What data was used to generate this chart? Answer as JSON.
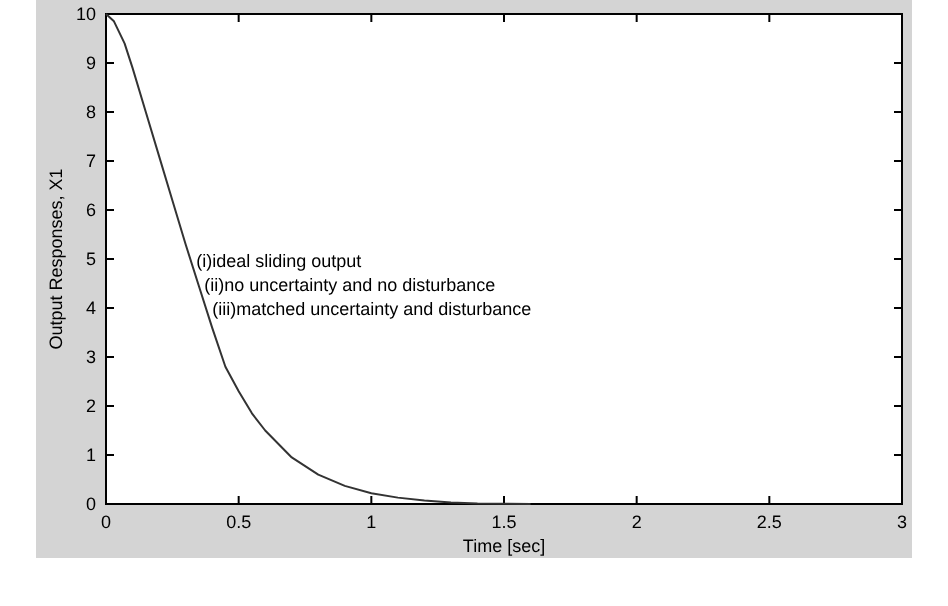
{
  "chart_data": {
    "type": "line",
    "xlabel": "Time [sec]",
    "ylabel": "Output Responses, X1",
    "annotations": [
      "(i)ideal sliding output",
      "(ii)no uncertainty and no disturbance",
      "(iii)matched uncertainty and disturbance"
    ],
    "x": [
      0,
      0.03,
      0.07,
      0.1,
      0.15,
      0.2,
      0.25,
      0.3,
      0.35,
      0.4,
      0.45,
      0.5,
      0.55,
      0.6,
      0.7,
      0.8,
      0.9,
      1.0,
      1.1,
      1.2,
      1.3,
      1.4,
      1.6
    ],
    "series": [
      {
        "color": "#333333",
        "values": [
          10,
          9.85,
          9.4,
          8.9,
          8.0,
          7.1,
          6.2,
          5.3,
          4.45,
          3.6,
          2.8,
          2.3,
          1.85,
          1.5,
          0.95,
          0.6,
          0.37,
          0.22,
          0.13,
          0.07,
          0.03,
          0.01,
          0
        ]
      }
    ],
    "xlim": [
      0,
      3
    ],
    "xticks": [
      0,
      0.5,
      1,
      1.5,
      2,
      2.5,
      3
    ],
    "ylim": [
      0,
      10
    ],
    "yticks": [
      0,
      1,
      2,
      3,
      4,
      5,
      6,
      7,
      8,
      9,
      10
    ],
    "grid": false,
    "marker": "none",
    "line_style": "solid"
  }
}
